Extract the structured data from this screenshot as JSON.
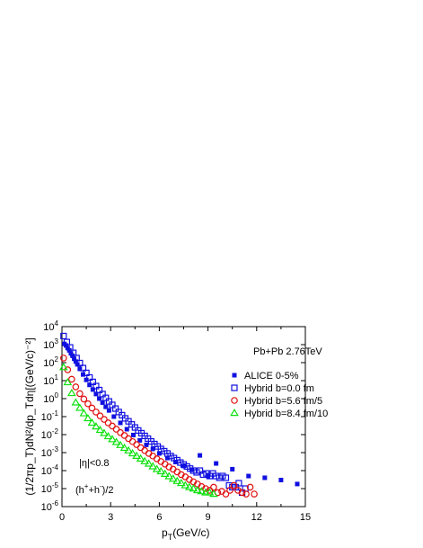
{
  "chart_data": {
    "type": "scatter",
    "title": "Pb+Pb 2.76TeV",
    "xlabel_main": "p",
    "xlabel_sub": "T",
    "xlabel_rest": "(GeV/c)",
    "ylabel": "(1/2πp_T)dN²/dp_Tdη[(GeV/c)⁻²]",
    "xlim": [
      0,
      15
    ],
    "ylim_log10": [
      -6,
      4
    ],
    "x_ticks": [
      0,
      3,
      6,
      9,
      12,
      15
    ],
    "y_tick_exponents": [
      -6,
      -5,
      -4,
      -3,
      -2,
      -1,
      0,
      1,
      2,
      3,
      4
    ],
    "y_tick_base": "10",
    "annotations": {
      "eta": "|η|<0.8",
      "charge_main": "(h",
      "charge_plus": "+",
      "charge_mid": "+h",
      "charge_minus": "-",
      "charge_end": ")/2"
    },
    "series": [
      {
        "name": "ALICE 0-5%",
        "marker": "filled-square",
        "color": "#1010e0",
        "x": [
          0.15,
          0.25,
          0.35,
          0.45,
          0.55,
          0.65,
          0.75,
          0.85,
          0.95,
          1.1,
          1.3,
          1.5,
          1.7,
          1.9,
          2.1,
          2.3,
          2.5,
          2.7,
          2.9,
          3.2,
          3.6,
          4.0,
          4.4,
          4.8,
          5.2,
          5.6,
          6.0,
          6.5,
          7.0,
          7.5,
          8.0,
          8.5,
          9.0,
          9.5,
          10.5,
          11.5,
          12.5,
          13.5,
          14.5
        ],
        "y": [
          1100,
          900,
          650,
          480,
          330,
          240,
          165,
          115,
          80,
          45,
          22,
          11,
          5.8,
          3.2,
          1.8,
          1.0,
          0.6,
          0.35,
          0.22,
          0.1,
          0.045,
          0.02,
          0.0095,
          0.0048,
          0.0027,
          0.0016,
          0.0009,
          0.0005,
          0.0003,
          0.00018,
          0.00011,
          0.0007,
          5e-05,
          0.00025,
          0.00012,
          5e-05,
          4e-05,
          3e-05,
          1.8e-05
        ]
      },
      {
        "name": "Hybrid b=0.0 fm",
        "marker": "open-square",
        "color": "#1010e0",
        "x": [
          0.1,
          0.3,
          0.5,
          0.7,
          0.9,
          1.1,
          1.3,
          1.5,
          1.7,
          1.9,
          2.1,
          2.3,
          2.5,
          2.7,
          2.9,
          3.1,
          3.3,
          3.5,
          3.7,
          3.9,
          4.1,
          4.3,
          4.5,
          4.7,
          4.9,
          5.1,
          5.3,
          5.5,
          5.7,
          5.9,
          6.1,
          6.3,
          6.5,
          6.7,
          6.9,
          7.1,
          7.3,
          7.5,
          7.7,
          7.9,
          8.1,
          8.3,
          8.5,
          8.7,
          8.9,
          9.1,
          9.3,
          9.5,
          9.7,
          9.9,
          10.1,
          10.3,
          10.5,
          10.7,
          10.9,
          11.1,
          11.3
        ],
        "y": [
          3000,
          1400,
          700,
          350,
          180,
          95,
          50,
          27,
          15,
          8.5,
          5,
          3,
          1.8,
          1.1,
          0.7,
          0.45,
          0.28,
          0.18,
          0.12,
          0.08,
          0.055,
          0.037,
          0.025,
          0.017,
          0.012,
          0.0085,
          0.006,
          0.0042,
          0.003,
          0.0022,
          0.0016,
          0.0012,
          0.0009,
          0.00065,
          0.0005,
          0.00038,
          0.00028,
          0.00022,
          0.00017,
          0.00013,
          0.0001,
          8e-05,
          0.0001,
          6e-05,
          7e-05,
          5e-05,
          7e-05,
          5e-05,
          4e-05,
          5e-05,
          4e-05,
          1.5e-05,
          1.2e-05,
          1.2e-05,
          2e-05,
          6e-06,
          1e-05
        ]
      },
      {
        "name": "Hybrid b=5.6 fm/5",
        "marker": "open-circle",
        "color": "#e01010",
        "x": [
          0.1,
          0.35,
          0.6,
          0.85,
          1.1,
          1.35,
          1.6,
          1.85,
          2.1,
          2.35,
          2.6,
          2.85,
          3.1,
          3.35,
          3.6,
          3.85,
          4.1,
          4.35,
          4.6,
          4.85,
          5.1,
          5.35,
          5.6,
          5.85,
          6.1,
          6.35,
          6.6,
          6.85,
          7.1,
          7.35,
          7.6,
          7.85,
          8.1,
          8.35,
          8.6,
          8.85,
          9.1,
          9.35,
          9.6,
          9.85,
          10.1,
          10.35,
          10.6,
          10.85,
          11.1,
          11.35,
          11.6,
          11.85
        ],
        "y": [
          180,
          40,
          12,
          4.5,
          1.9,
          0.95,
          0.52,
          0.3,
          0.18,
          0.11,
          0.07,
          0.045,
          0.03,
          0.02,
          0.013,
          0.009,
          0.006,
          0.0041,
          0.0028,
          0.0019,
          0.0013,
          0.0009,
          0.00065,
          0.00045,
          0.00032,
          0.00023,
          0.00016,
          0.00012,
          8.5e-05,
          6e-05,
          4.5e-05,
          3.2e-05,
          2.4e-05,
          1.8e-05,
          1.3e-05,
          1e-05,
          8e-06,
          1.2e-05,
          6e-06,
          7e-06,
          5e-06,
          8e-06,
          1.5e-05,
          8e-06,
          6e-06,
          5e-06,
          1.2e-05,
          5e-06
        ]
      },
      {
        "name": "Hybrid b=8.4 fm/10",
        "marker": "open-triangle",
        "color": "#10e010",
        "x": [
          0.1,
          0.35,
          0.6,
          0.85,
          1.1,
          1.35,
          1.6,
          1.85,
          2.1,
          2.35,
          2.6,
          2.85,
          3.1,
          3.35,
          3.6,
          3.85,
          4.1,
          4.35,
          4.6,
          4.85,
          5.1,
          5.35,
          5.6,
          5.85,
          6.1,
          6.35,
          6.6,
          6.85,
          7.1,
          7.35,
          7.6,
          7.85,
          8.1,
          8.35,
          8.6,
          8.85,
          9.1,
          9.35
        ],
        "y": [
          55,
          8,
          2,
          0.6,
          0.3,
          0.15,
          0.08,
          0.045,
          0.028,
          0.018,
          0.012,
          0.008,
          0.0055,
          0.0038,
          0.0026,
          0.0018,
          0.0013,
          0.0009,
          0.00065,
          0.00046,
          0.00033,
          0.00024,
          0.00017,
          0.00012,
          9e-05,
          6.5e-05,
          4.8e-05,
          3.5e-05,
          2.6e-05,
          2e-05,
          1.5e-05,
          1.2e-05,
          1e-05,
          8e-06,
          7e-06,
          6e-06,
          6e-06,
          5e-06
        ]
      }
    ]
  }
}
